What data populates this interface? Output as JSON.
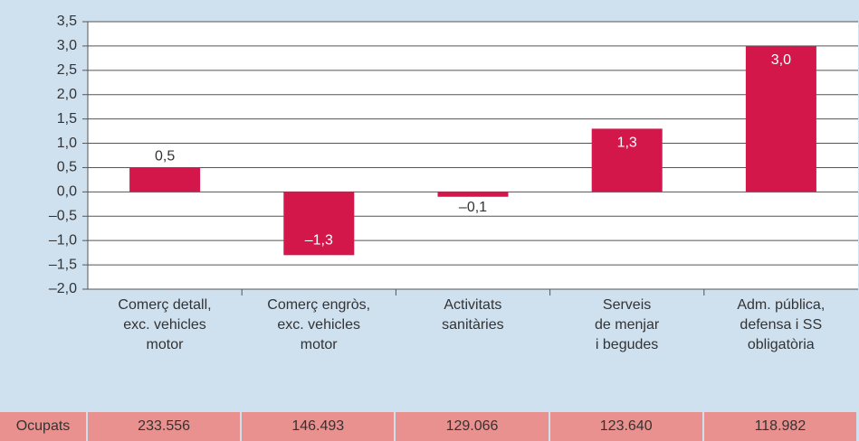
{
  "chart_data": {
    "type": "bar",
    "categories": [
      "Comerç detall,\nexc. vehicles\nmotor",
      "Comerç engròs,\nexc. vehicles\nmotor",
      "Activitats\nsanitàries",
      "Serveis\nde menjar\ni begudes",
      "Adm. pública,\ndefensa i SS\nobligatòria"
    ],
    "values": [
      0.5,
      -1.3,
      -0.1,
      1.3,
      3.0
    ],
    "value_labels": [
      "0,5",
      "–1,3",
      "–0,1",
      "1,3",
      "3,0"
    ],
    "color": "#d4174b",
    "ylim": [
      -2.0,
      3.5
    ],
    "yticks": [
      {
        "value": -2.0,
        "label": "–2,0"
      },
      {
        "value": -1.5,
        "label": "–1,5"
      },
      {
        "value": -1.0,
        "label": "–1,0"
      },
      {
        "value": -0.5,
        "label": "–0,5"
      },
      {
        "value": 0.0,
        "label": "0,0"
      },
      {
        "value": 0.5,
        "label": "0,5"
      },
      {
        "value": 1.0,
        "label": "1,0"
      },
      {
        "value": 1.5,
        "label": "1,5"
      },
      {
        "value": 2.0,
        "label": "2,0"
      },
      {
        "value": 2.5,
        "label": "2,5"
      },
      {
        "value": 3.0,
        "label": "3,0"
      },
      {
        "value": 3.5,
        "label": "3,5"
      }
    ],
    "grid": true
  },
  "table": {
    "header": "Ocupats",
    "cells": [
      "233.556",
      "146.493",
      "129.066",
      "123.640",
      "118.982"
    ]
  }
}
